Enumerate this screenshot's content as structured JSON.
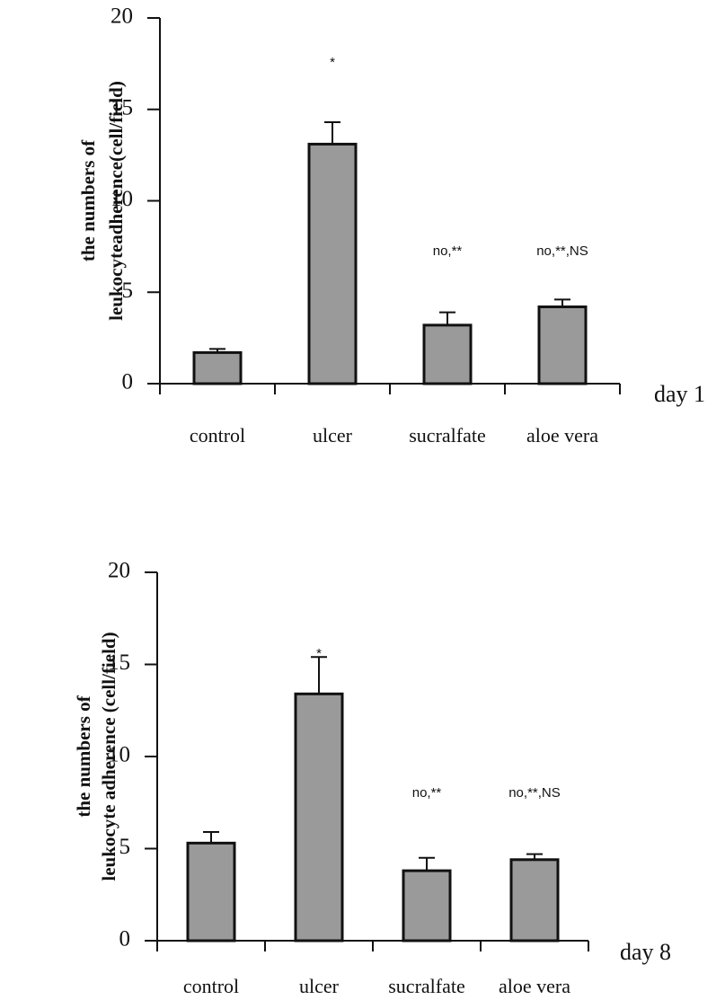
{
  "chart_data": [
    {
      "type": "bar",
      "ylabel": [
        "the numbers of",
        "leukocyteadherence(cell/field)"
      ],
      "xlabel": "day 1",
      "categories": [
        "control",
        "ulcer",
        "sucralfate",
        "aloe vera"
      ],
      "values": [
        1.7,
        13.1,
        3.2,
        4.2
      ],
      "errors": [
        0.2,
        1.2,
        0.7,
        0.4
      ],
      "annotations": [
        null,
        "*",
        "no,**",
        "no,**,NS"
      ],
      "color": "#9a9a9a",
      "ylim": [
        0,
        20
      ],
      "yticks": [
        0,
        5,
        10,
        15,
        20
      ]
    },
    {
      "type": "bar",
      "ylabel": [
        "the numbers of",
        "leukocyte adherence (cell/field)"
      ],
      "xlabel": "day 8",
      "categories": [
        "control",
        "ulcer",
        "sucralfate",
        "aloe vera"
      ],
      "values": [
        5.3,
        13.4,
        3.8,
        4.4
      ],
      "errors": [
        0.6,
        2.0,
        0.7,
        0.3
      ],
      "annotations": [
        null,
        "*",
        "no,**",
        "no,**,NS"
      ],
      "color": "#9a9a9a",
      "ylim": [
        0,
        20
      ],
      "yticks": [
        0,
        5,
        10,
        15,
        20
      ]
    }
  ]
}
